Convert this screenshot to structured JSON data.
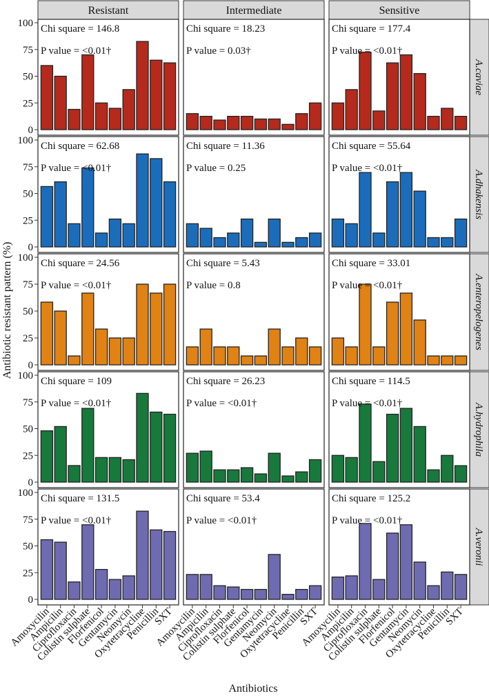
{
  "chart_data": {
    "type": "bar",
    "ylabel": "Antibiotic resistant pattern (%)",
    "xlabel": "Antibiotics",
    "ylim": [
      0,
      100
    ],
    "yticks": [
      "0",
      "25",
      "50",
      "75",
      "100"
    ],
    "grid": false,
    "columns": [
      "Resistant",
      "Intermediate",
      "Sensitive"
    ],
    "categories": [
      "Amoxycilin",
      "Ampicilin",
      "Ciprofloxacin",
      "Colistin sulphate",
      "Florfenicol",
      "Gentamycin",
      "Neomycin",
      "Oxytetracycline",
      "Penicillin",
      "SXT"
    ],
    "rows": [
      {
        "species": "A.caviae",
        "color": "#b52a1c",
        "panels": [
          {
            "chi": "Chi square = 146.8",
            "p": "P value = <0.01†",
            "values": [
              60,
              50,
              19,
              70,
              25,
              20,
              37.5,
              82.5,
              65,
              62.5
            ]
          },
          {
            "chi": "Chi square = 18.23",
            "p": "P value = 0.03†",
            "values": [
              15,
              12.5,
              9,
              12.5,
              12.5,
              10,
              10,
              5,
              15,
              25
            ]
          },
          {
            "chi": "Chi square = 177.4",
            "p": "P value = <0.01†",
            "values": [
              25,
              37.5,
              72.5,
              17.5,
              62.5,
              70,
              52.5,
              12.5,
              20,
              12.5
            ]
          }
        ]
      },
      {
        "species": "A.dhakensis",
        "color": "#1b6dbb",
        "panels": [
          {
            "chi": "Chi square = 62.68",
            "p": "P value = <0.01†",
            "values": [
              56.5,
              60.9,
              21.7,
              73.9,
              13,
              26.1,
              21.7,
              87,
              82.6,
              60.9
            ]
          },
          {
            "chi": "Chi square = 11.36",
            "p": "P value = 0.25",
            "values": [
              21.7,
              17.4,
              8.7,
              13,
              26.1,
              4.3,
              26.1,
              4.3,
              8.7,
              13
            ]
          },
          {
            "chi": "Chi square = 55.64",
            "p": "P value = <0.01†",
            "values": [
              26.1,
              21.7,
              69.6,
              13,
              60.9,
              69.6,
              52.2,
              8.7,
              8.7,
              26.1
            ]
          }
        ]
      },
      {
        "species": "A.enteropelogenes",
        "color": "#e08214",
        "panels": [
          {
            "chi": "Chi square = 24.56",
            "p": "P value = <0.01†",
            "values": [
              58.3,
              50,
              8.3,
              66.7,
              33.3,
              25,
              25,
              75,
              66.7,
              75
            ]
          },
          {
            "chi": "Chi square = 5.43",
            "p": "P value = 0.8",
            "values": [
              16.7,
              33.3,
              16.7,
              16.7,
              8.3,
              8.3,
              33.3,
              16.7,
              25,
              16.7
            ]
          },
          {
            "chi": "Chi square = 33.01",
            "p": "P value = <0.01†",
            "values": [
              25,
              16.7,
              75,
              16.7,
              58.3,
              66.7,
              41.7,
              8.3,
              8.3,
              8.3
            ]
          }
        ]
      },
      {
        "species": "A.hydrophila",
        "color": "#18793d",
        "panels": [
          {
            "chi": "Chi square = 109",
            "p": "P value = <0.01†",
            "values": [
              48,
              52,
              15.5,
              69,
              23,
              23,
              21,
              83,
              65.5,
              63.5
            ]
          },
          {
            "chi": "Chi square = 26.23",
            "p": "P value = <0.01†",
            "values": [
              27,
              29,
              11.5,
              11.5,
              13.5,
              7.7,
              27,
              5.8,
              9.6,
              21
            ]
          },
          {
            "chi": "Chi square = 114.5",
            "p": "P value = <0.01†",
            "values": [
              25,
              23,
              73,
              19.2,
              63.5,
              69,
              52,
              11.5,
              25,
              15.4
            ]
          }
        ]
      },
      {
        "species": "A.veronii",
        "color": "#6f6bb1",
        "panels": [
          {
            "chi": "Chi square = 131.5",
            "p": "P value = <0.01†",
            "values": [
              55.8,
              53.5,
              16.3,
              69.8,
              28,
              18.6,
              22,
              82.5,
              65,
              63.5
            ]
          },
          {
            "chi": "Chi square = 53.4",
            "p": "P value = <0.01†",
            "values": [
              23.3,
              23.3,
              12.8,
              11.6,
              9.3,
              9.3,
              42,
              4.7,
              9.3,
              12.8
            ]
          },
          {
            "chi": "Chi square = 125.2",
            "p": "P value = <0.01†",
            "values": [
              20.9,
              22,
              71,
              18.6,
              62,
              69.8,
              34.9,
              12.8,
              25.6,
              23.3
            ]
          }
        ]
      }
    ]
  }
}
